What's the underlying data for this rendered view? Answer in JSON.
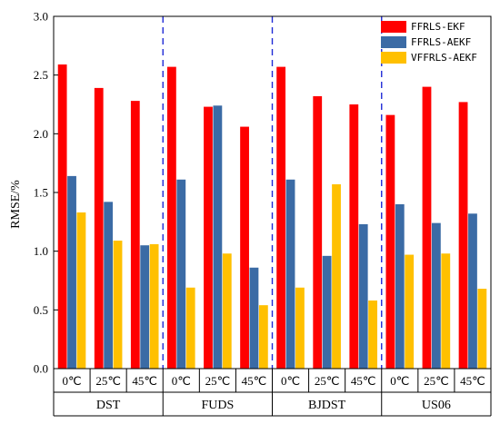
{
  "chart_data": {
    "type": "bar",
    "title": "",
    "xlabel": "",
    "ylabel": "RMSE/%",
    "ylim": [
      0,
      3.0
    ],
    "yticks": [
      "0.0",
      "0.5",
      "1.0",
      "1.5",
      "2.0",
      "2.5",
      "3.0"
    ],
    "groups": [
      "DST",
      "FUDS",
      "BJDST",
      "US06"
    ],
    "temperatures": [
      "0℃",
      "25℃",
      "45℃"
    ],
    "legend_position": "top-right",
    "series": [
      {
        "name": "FFRLS-EKF",
        "color": "#ff0000",
        "values": [
          2.59,
          2.39,
          2.28,
          2.57,
          2.23,
          2.06,
          2.57,
          2.32,
          2.25,
          2.16,
          2.4,
          2.27
        ]
      },
      {
        "name": "FFRLS-AEKF",
        "color": "#3b6ba5",
        "values": [
          1.64,
          1.42,
          1.05,
          1.61,
          2.24,
          0.86,
          1.61,
          0.96,
          1.23,
          1.4,
          1.24,
          1.32
        ]
      },
      {
        "name": "VFFRLS-AEKF",
        "color": "#ffc000",
        "values": [
          1.33,
          1.09,
          1.06,
          0.69,
          0.98,
          0.54,
          0.69,
          1.57,
          0.58,
          0.97,
          0.98,
          0.68
        ]
      }
    ]
  }
}
